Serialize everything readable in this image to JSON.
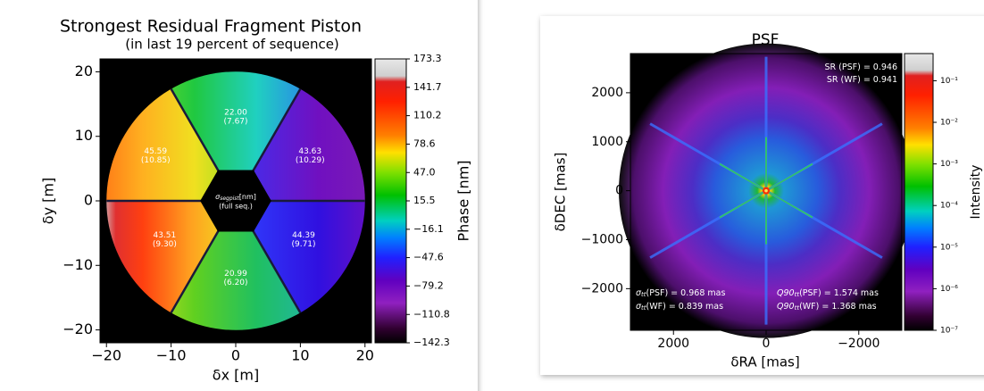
{
  "chart_data": [
    {
      "type": "image",
      "title": "Strongest Residual Fragment Piston",
      "subtitle": "(in last 19 percent of sequence)",
      "xlabel": "δx [m]",
      "ylabel": "δy [m]",
      "xlim": [
        -21,
        21
      ],
      "ylim": [
        -22,
        22
      ],
      "xticks": [
        {
          "value": -20,
          "label": "−20"
        },
        {
          "value": -10,
          "label": "−10"
        },
        0,
        10,
        20
      ],
      "yticks": [
        {
          "value": -20,
          "label": "−20"
        },
        {
          "value": -10,
          "label": "−10"
        },
        0,
        10,
        20
      ],
      "colorbar": {
        "label": "Phase [nm]",
        "lim": [
          -142.3,
          173.3
        ],
        "ticks": [
          173.3,
          141.7,
          110.2,
          78.6,
          {
            "value": 47.0,
            "label": "47.0"
          },
          15.5,
          {
            "value": -16.1,
            "label": "−16.1"
          },
          {
            "value": -47.6,
            "label": "−47.6"
          },
          {
            "value": -79.2,
            "label": "−79.2"
          },
          {
            "value": -110.8,
            "label": "−110.8"
          },
          {
            "value": -142.3,
            "label": "−142.3"
          }
        ]
      },
      "segments": {
        "values": [
          22.0,
          45.59,
          43.63,
          43.51,
          44.39,
          20.99
        ],
        "value_labels": [
          "22.00",
          "45.59",
          "43.63",
          "43.51",
          "44.39",
          "20.99"
        ],
        "errors": [
          7.67,
          10.85,
          10.29,
          9.3,
          9.71,
          6.2
        ],
        "error_labels": [
          "(7.67)",
          "(10.85)",
          "(10.29)",
          "(9.30)",
          "(9.71)",
          "(6.20)"
        ]
      },
      "center_label": {
        "symbol": "σ",
        "sub": "segpist",
        "text": "[nm]",
        "note": "(full seq.)"
      }
    },
    {
      "type": "image",
      "title": "PSF",
      "xlabel": "δRA [mas]",
      "ylabel": "δDEC [mas]",
      "xlim": [
        2930,
        -2930
      ],
      "ylim": [
        -2850,
        2800
      ],
      "xticks": [
        2000,
        0,
        {
          "value": -2000,
          "label": "−2000"
        }
      ],
      "yticks": [
        {
          "value": -2000,
          "label": "−2000"
        },
        {
          "value": -1000,
          "label": "−1000"
        },
        0,
        1000,
        2000
      ],
      "colorbar": {
        "label": "Intensity",
        "log": true,
        "lim": [
          1e-07,
          0.45
        ],
        "ticks": [
          {
            "value": 0.1,
            "label": "10⁻¹"
          },
          {
            "value": 0.01,
            "label": "10⁻²"
          },
          {
            "value": 0.001,
            "label": "10⁻³"
          },
          {
            "value": 0.0001,
            "label": "10⁻⁴"
          },
          {
            "value": 1e-05,
            "label": "10⁻⁵"
          },
          {
            "value": 1e-06,
            "label": "10⁻⁶"
          },
          {
            "value": 1e-07,
            "label": "10⁻⁷"
          }
        ]
      },
      "annotations": [
        {
          "text": "SR (PSF) = 0.946"
        },
        {
          "text": "SR (WF) = 0.941"
        },
        {
          "symbol": "σ",
          "sub": "tt",
          "text": "(PSF) = 0.968 mas"
        },
        {
          "symbol": "σ",
          "sub": "tt",
          "text": "(WF) = 0.839 mas"
        },
        {
          "symbol": "Q90",
          "sub": "tt",
          "text": "(PSF) = 1.574 mas"
        },
        {
          "symbol": "Q90",
          "sub": "tt",
          "text": "(WF) = 1.368 mas"
        }
      ]
    }
  ]
}
